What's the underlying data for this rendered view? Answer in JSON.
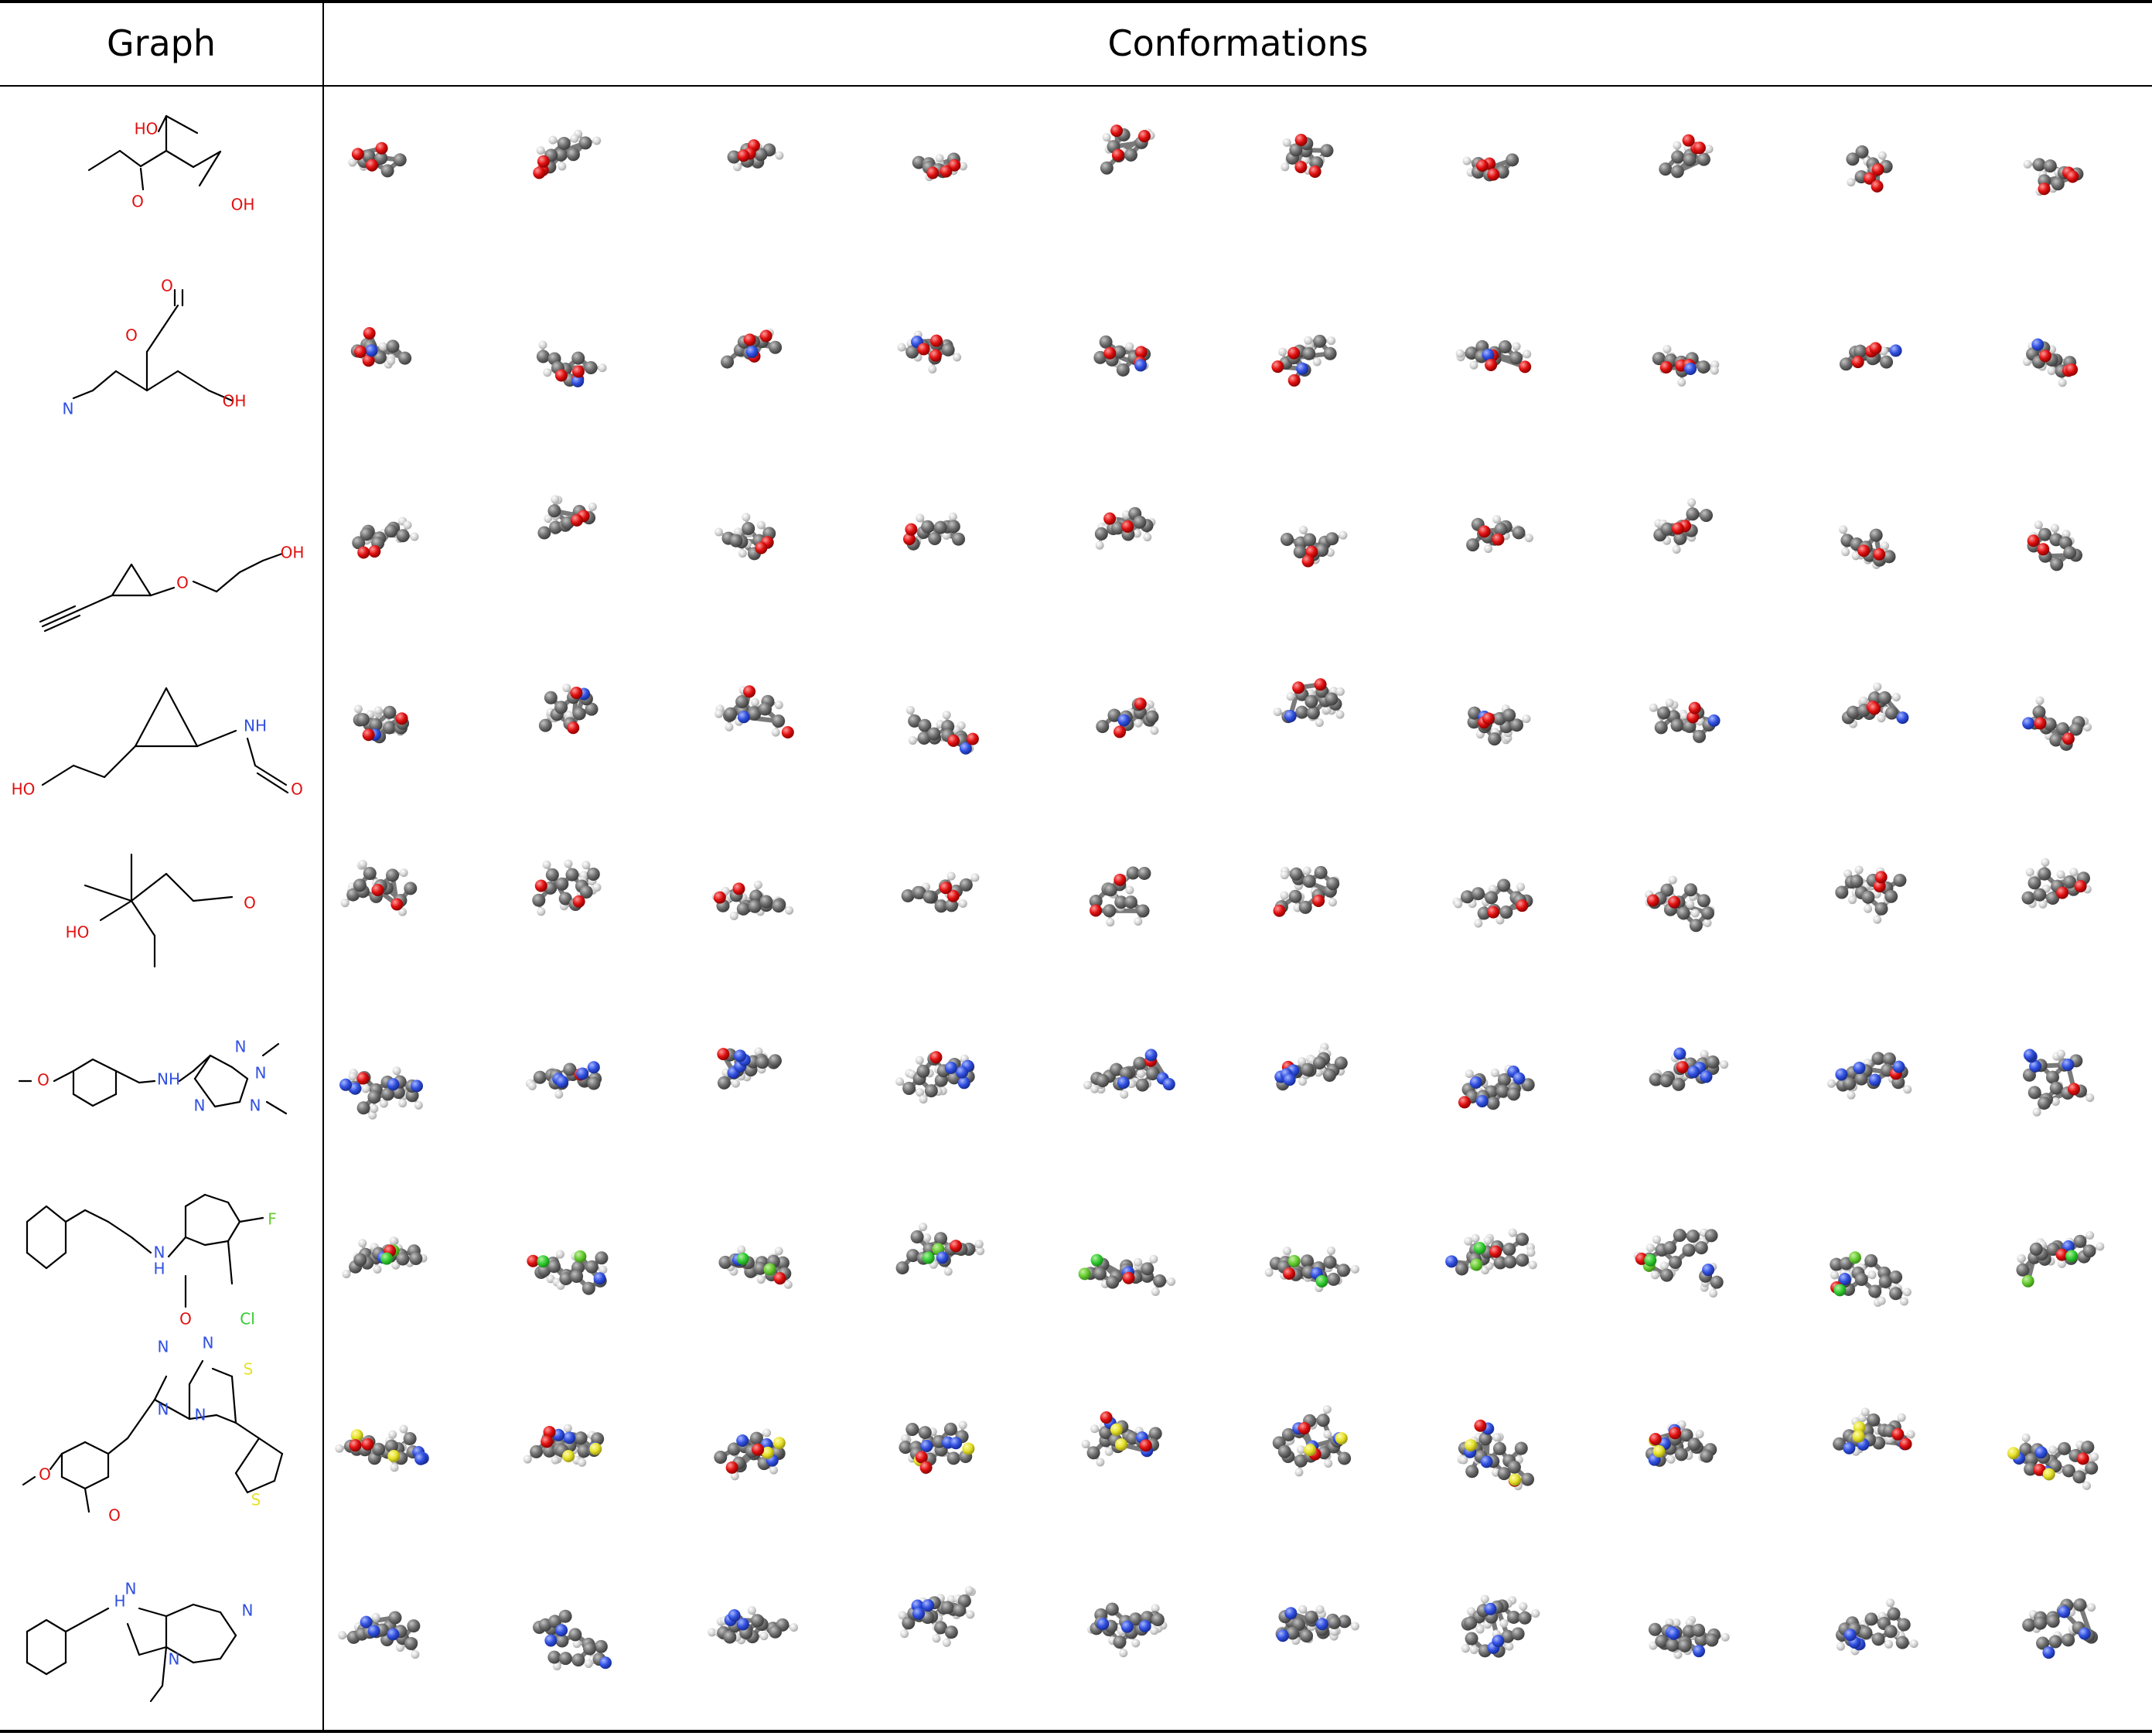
{
  "table": {
    "header_graph": "Graph",
    "header_conformations": "Conformations"
  },
  "colors": {
    "carbon": "#7a7a7a",
    "hydrogen": "#e8e8e8",
    "oxygen": "#e01010",
    "nitrogen": "#3050e0",
    "sulfur": "#e6e22a",
    "fluorine": "#66cc33",
    "chlorine": "#33cc33",
    "bond_2d": "#000000"
  },
  "molecules": [
    {
      "labels": [
        "HO",
        "O",
        "OH"
      ],
      "label_colors": [
        "oxygen",
        "oxygen",
        "oxygen"
      ],
      "hetero": [
        "oxygen",
        "oxygen",
        "oxygen"
      ],
      "conformers": 10
    },
    {
      "labels": [
        "O",
        "O",
        "N",
        "OH"
      ],
      "label_colors": [
        "oxygen",
        "oxygen",
        "nitrogen",
        "oxygen"
      ],
      "hetero": [
        "oxygen",
        "oxygen",
        "nitrogen",
        "oxygen"
      ],
      "conformers": 10
    },
    {
      "labels": [
        "O",
        "OH"
      ],
      "label_colors": [
        "oxygen",
        "oxygen"
      ],
      "hetero": [
        "oxygen",
        "oxygen"
      ],
      "conformers": 10
    },
    {
      "labels": [
        "NH",
        "HO",
        "O"
      ],
      "label_colors": [
        "nitrogen",
        "oxygen",
        "oxygen"
      ],
      "hetero": [
        "nitrogen",
        "oxygen",
        "oxygen"
      ],
      "conformers": 10
    },
    {
      "labels": [
        "O",
        "HO"
      ],
      "label_colors": [
        "oxygen",
        "oxygen"
      ],
      "hetero": [
        "oxygen",
        "oxygen"
      ],
      "conformers": 10
    },
    {
      "labels": [
        "O",
        "NH",
        "N",
        "N",
        "N",
        "N"
      ],
      "label_colors": [
        "oxygen",
        "nitrogen",
        "nitrogen",
        "nitrogen",
        "nitrogen",
        "nitrogen"
      ],
      "hetero": [
        "oxygen",
        "nitrogen",
        "nitrogen",
        "nitrogen",
        "nitrogen"
      ],
      "conformers": 10
    },
    {
      "labels": [
        "F",
        "N",
        "H",
        "O",
        "Cl"
      ],
      "label_colors": [
        "fluorine",
        "nitrogen",
        "nitrogen",
        "oxygen",
        "chlorine"
      ],
      "hetero": [
        "fluorine",
        "nitrogen",
        "oxygen",
        "chlorine"
      ],
      "conformers": 10
    },
    {
      "labels": [
        "N",
        "N",
        "S",
        "N",
        "N",
        "O",
        "O",
        "S"
      ],
      "label_colors": [
        "nitrogen",
        "nitrogen",
        "sulfur",
        "nitrogen",
        "nitrogen",
        "oxygen",
        "oxygen",
        "sulfur"
      ],
      "hetero": [
        "nitrogen",
        "nitrogen",
        "nitrogen",
        "sulfur",
        "oxygen",
        "oxygen",
        "sulfur"
      ],
      "conformers": 10
    },
    {
      "labels": [
        "H",
        "N",
        "N",
        "N"
      ],
      "label_colors": [
        "nitrogen",
        "nitrogen",
        "nitrogen",
        "nitrogen"
      ],
      "hetero": [
        "nitrogen",
        "nitrogen",
        "nitrogen"
      ],
      "conformers": 10
    }
  ]
}
